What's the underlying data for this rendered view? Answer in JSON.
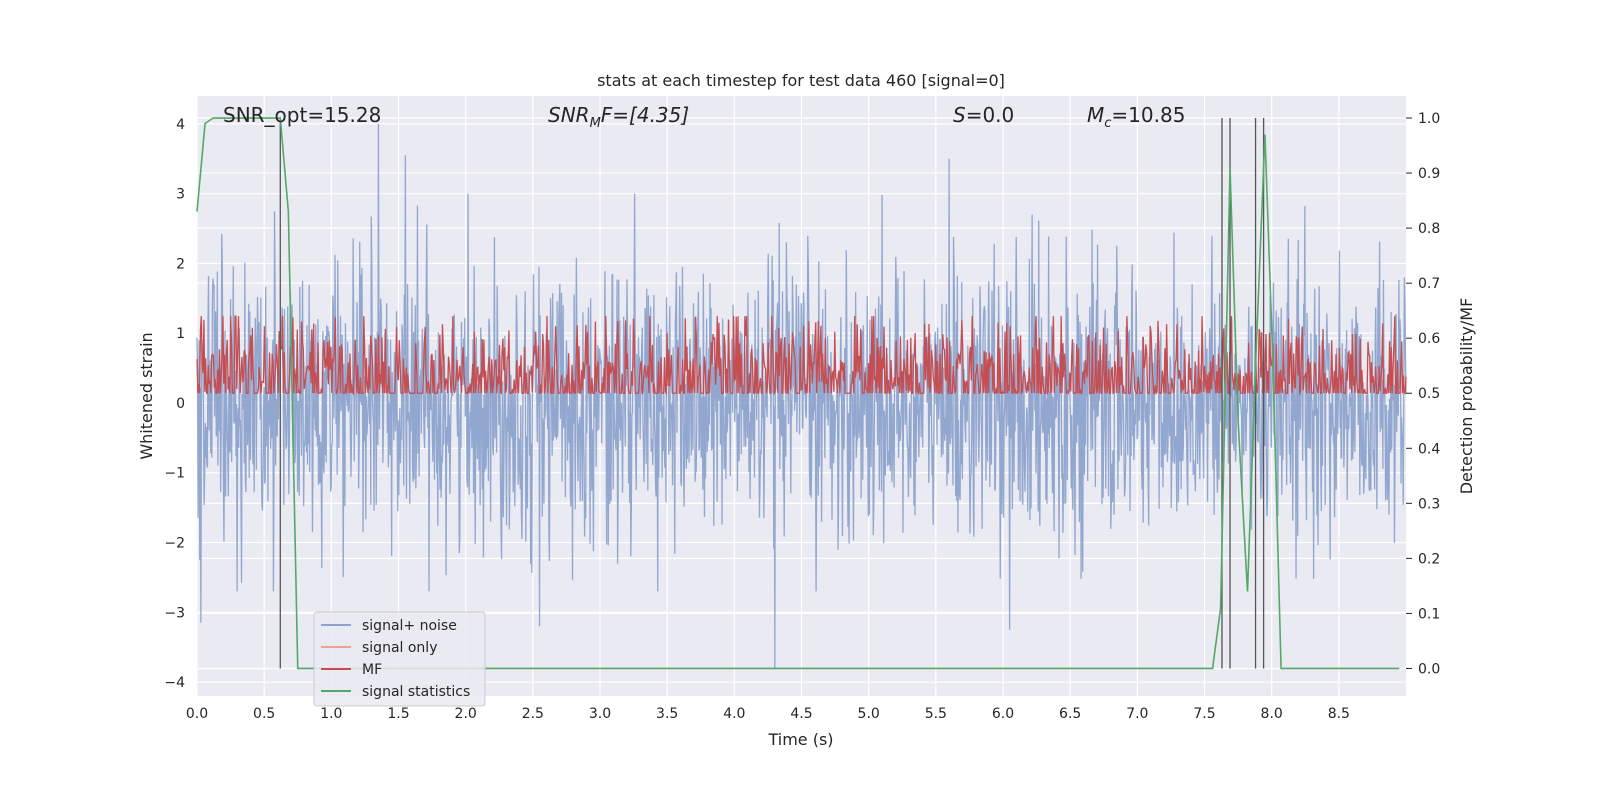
{
  "chart_data": {
    "type": "line",
    "title": "stats at each timestep for test data 460 [signal=0]",
    "xlabel": "Time (s)",
    "ylabel_left": "Whitened strain",
    "ylabel_right": "Detection probability/MF",
    "xlim": [
      0.0,
      9.0
    ],
    "ylim_left": [
      -4.2,
      4.4
    ],
    "ylim_right": [
      -0.05,
      1.04
    ],
    "x_ticks": [
      0.0,
      0.5,
      1.0,
      1.5,
      2.0,
      2.5,
      3.0,
      3.5,
      4.0,
      4.5,
      5.0,
      5.5,
      6.0,
      6.5,
      7.0,
      7.5,
      8.0,
      8.5
    ],
    "x_tick_labels": [
      "0.0",
      "0.5",
      "1.0",
      "1.5",
      "2.0",
      "2.5",
      "3.0",
      "3.5",
      "4.0",
      "4.5",
      "5.0",
      "5.5",
      "6.0",
      "6.5",
      "7.0",
      "7.5",
      "8.0",
      "8.5"
    ],
    "y_left_ticks": [
      4,
      3,
      2,
      1,
      0,
      -1,
      -2,
      -3,
      -4
    ],
    "y_left_tick_labels": [
      "4",
      "3",
      "2",
      "1",
      "0",
      "−1",
      "−2",
      "−3",
      "−4"
    ],
    "y_right_ticks": [
      1.0,
      0.9,
      0.8,
      0.7,
      0.6,
      0.5,
      0.4,
      0.3,
      0.2,
      0.1,
      0.0
    ],
    "y_right_tick_labels": [
      "1.0",
      "0.9",
      "0.8",
      "0.7",
      "0.6",
      "0.5",
      "0.4",
      "0.3",
      "0.2",
      "0.1",
      "0.0"
    ],
    "grid": true,
    "legend_position": "lower-left",
    "annotations": {
      "snr_opt": "SNR_opt=15.28",
      "snr_mf_prefix": "SNR",
      "snr_mf_sub": "M",
      "snr_mf_suffix": "F=[4.35]",
      "s_var": "S",
      "s_value": "=0.0",
      "mc_var": "M",
      "mc_sub": "c",
      "mc_value": "=10.85"
    },
    "series": [
      {
        "name": "signal+ noise",
        "color": "#8da3cc",
        "axis": "left",
        "description_range": [
          -3.8,
          4.0
        ],
        "spikes": [
          {
            "x": 1.35,
            "y": 4.0
          },
          {
            "x": 1.55,
            "y": 3.55
          },
          {
            "x": 5.6,
            "y": 3.5
          },
          {
            "x": 4.3,
            "y": -3.8
          },
          {
            "x": 0.03,
            "y": -3.15
          },
          {
            "x": 2.55,
            "y": -3.2
          },
          {
            "x": 6.05,
            "y": -3.25
          },
          {
            "x": 0.3,
            "y": -2.7
          }
        ]
      },
      {
        "name": "signal only",
        "color": "#e8a68a",
        "axis": "left",
        "x": [],
        "y": []
      },
      {
        "name": "MF",
        "color": "#c44e52",
        "axis": "right",
        "baseline": 0.52,
        "amplitude": 0.06
      },
      {
        "name": "signal statistics",
        "color": "#55a868",
        "axis": "right",
        "x": [
          0.0,
          0.06,
          0.12,
          0.2,
          0.3,
          0.4,
          0.5,
          0.55,
          0.62,
          0.68,
          0.75,
          1.0,
          2.0,
          3.0,
          4.0,
          5.0,
          6.0,
          7.0,
          7.5,
          7.56,
          7.62,
          7.69,
          7.75,
          7.82,
          7.88,
          7.95,
          8.01,
          8.07,
          8.5,
          8.95
        ],
        "y": [
          0.83,
          0.99,
          1.0,
          1.0,
          1.0,
          1.0,
          1.0,
          1.0,
          1.0,
          0.83,
          0.0,
          0.0,
          0.0,
          0.0,
          0.0,
          0.0,
          0.0,
          0.0,
          0.0,
          0.0,
          0.11,
          0.91,
          0.45,
          0.14,
          0.55,
          0.97,
          0.55,
          0.0,
          0.0,
          0.0
        ]
      }
    ],
    "vertical_markers": [
      0.62,
      7.63,
      7.69,
      7.88,
      7.94
    ],
    "vertical_marker_color": "#555555",
    "vertical_marker_range": [
      0.0,
      1.0
    ]
  }
}
